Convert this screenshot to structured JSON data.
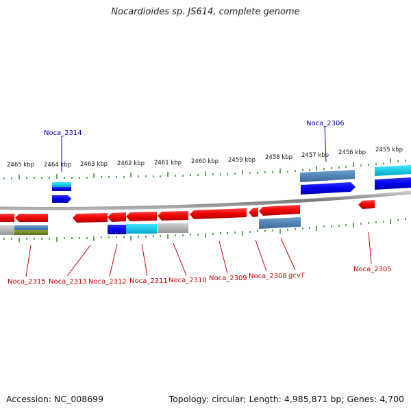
{
  "title": "Nocardioides sp. JS614, complete genome",
  "accession": "Accession: NC_008699",
  "summary": "Topology: circular; Length: 4,985,871 bp; Genes: 4,700",
  "scale_labels": [
    "2465 kbp",
    "2464 kbp",
    "2463 kbp",
    "2462 kbp",
    "2461 kbp",
    "2460 kbp",
    "2459 kbp",
    "2458 kbp",
    "2457 kbp",
    "2456 kbp",
    "2455 kbp"
  ],
  "genes_top": [
    "Noca_2314",
    "Noca_2306"
  ],
  "genes_bottom": [
    "Noca_2315",
    "Noca_2313",
    "Noca_2312",
    "Noca_2311",
    "Noca_2310",
    "Noca_2309",
    "Noca_2308",
    "gcvT",
    "Noca_2305"
  ],
  "colors": {
    "gene": "#ee0000",
    "blue": "#0000ee",
    "cyan": "#00c8e0",
    "steel": "#4a7fb0",
    "gray": "#b8b8b8",
    "olive": "#6e8a2a",
    "tick": "#2a8a2a",
    "backbone": "#888888"
  }
}
